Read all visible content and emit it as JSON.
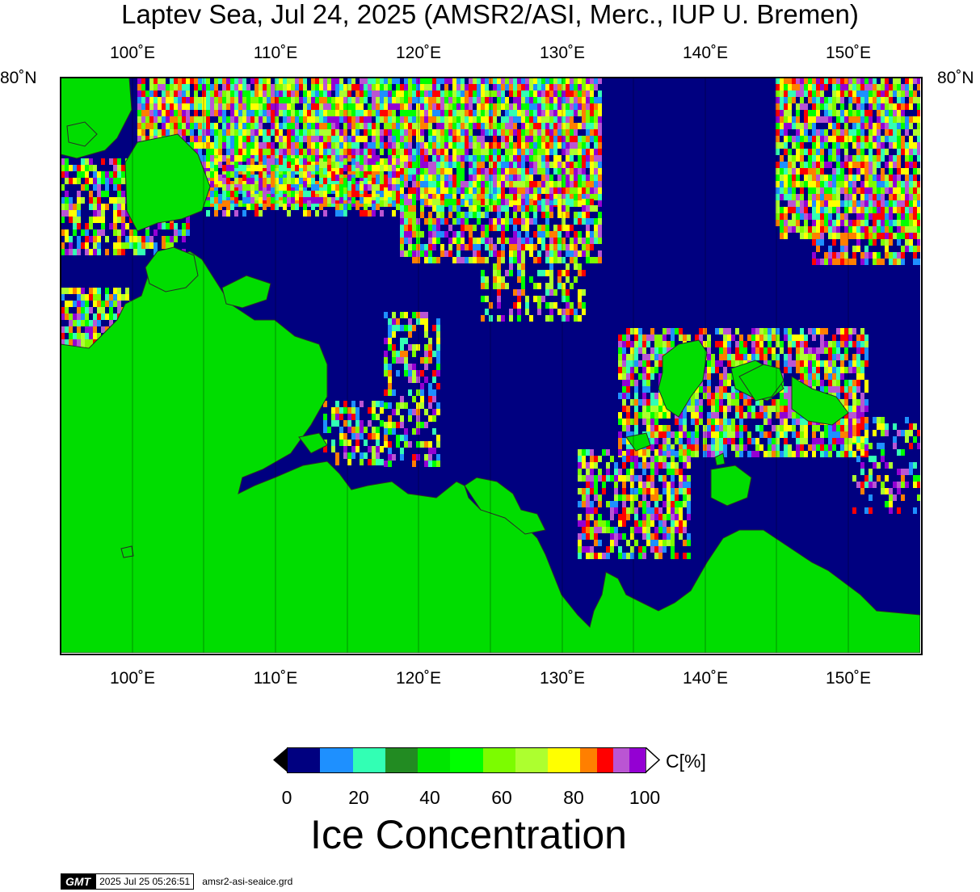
{
  "title": "Laptev Sea, Jul 24, 2025 (AMSR2/ASI, Merc., IUP U. Bremen)",
  "top_lon_labels": [
    "100˚E",
    "110˚E",
    "120˚E",
    "130˚E",
    "140˚E",
    "150˚E"
  ],
  "bottom_lon_labels": [
    "100˚E",
    "110˚E",
    "120˚E",
    "130˚E",
    "140˚E",
    "150˚E"
  ],
  "lat_left_label": "80˚N",
  "lat_right_label": "80˚N",
  "colorbar": {
    "colors": [
      "#000080",
      "#1e90ff",
      "#32ffb4",
      "#228b22",
      "#00e600",
      "#00ff00",
      "#7cfc00",
      "#adff2f",
      "#ffff00",
      "#ff7f00",
      "#ff0000",
      "#ba55d3",
      "#9400d3"
    ],
    "ticks": [
      "0",
      "20",
      "40",
      "60",
      "80",
      "100"
    ],
    "unit": "C[%]",
    "title": "Ice Concentration"
  },
  "stamp": {
    "logo": "GMT",
    "timestamp": "2025 Jul 25 05:26:51",
    "file": "amsr2-asi-seaice.grd"
  },
  "colors": {
    "ocean": "#000080",
    "land": "#00dd00",
    "ice_colors": [
      "#adff2f",
      "#ffff00",
      "#ff7f00",
      "#ff0000",
      "#ba55d3",
      "#9400d3",
      "#7cfc00",
      "#00ff00",
      "#1e90ff",
      "#32ffb4"
    ]
  }
}
